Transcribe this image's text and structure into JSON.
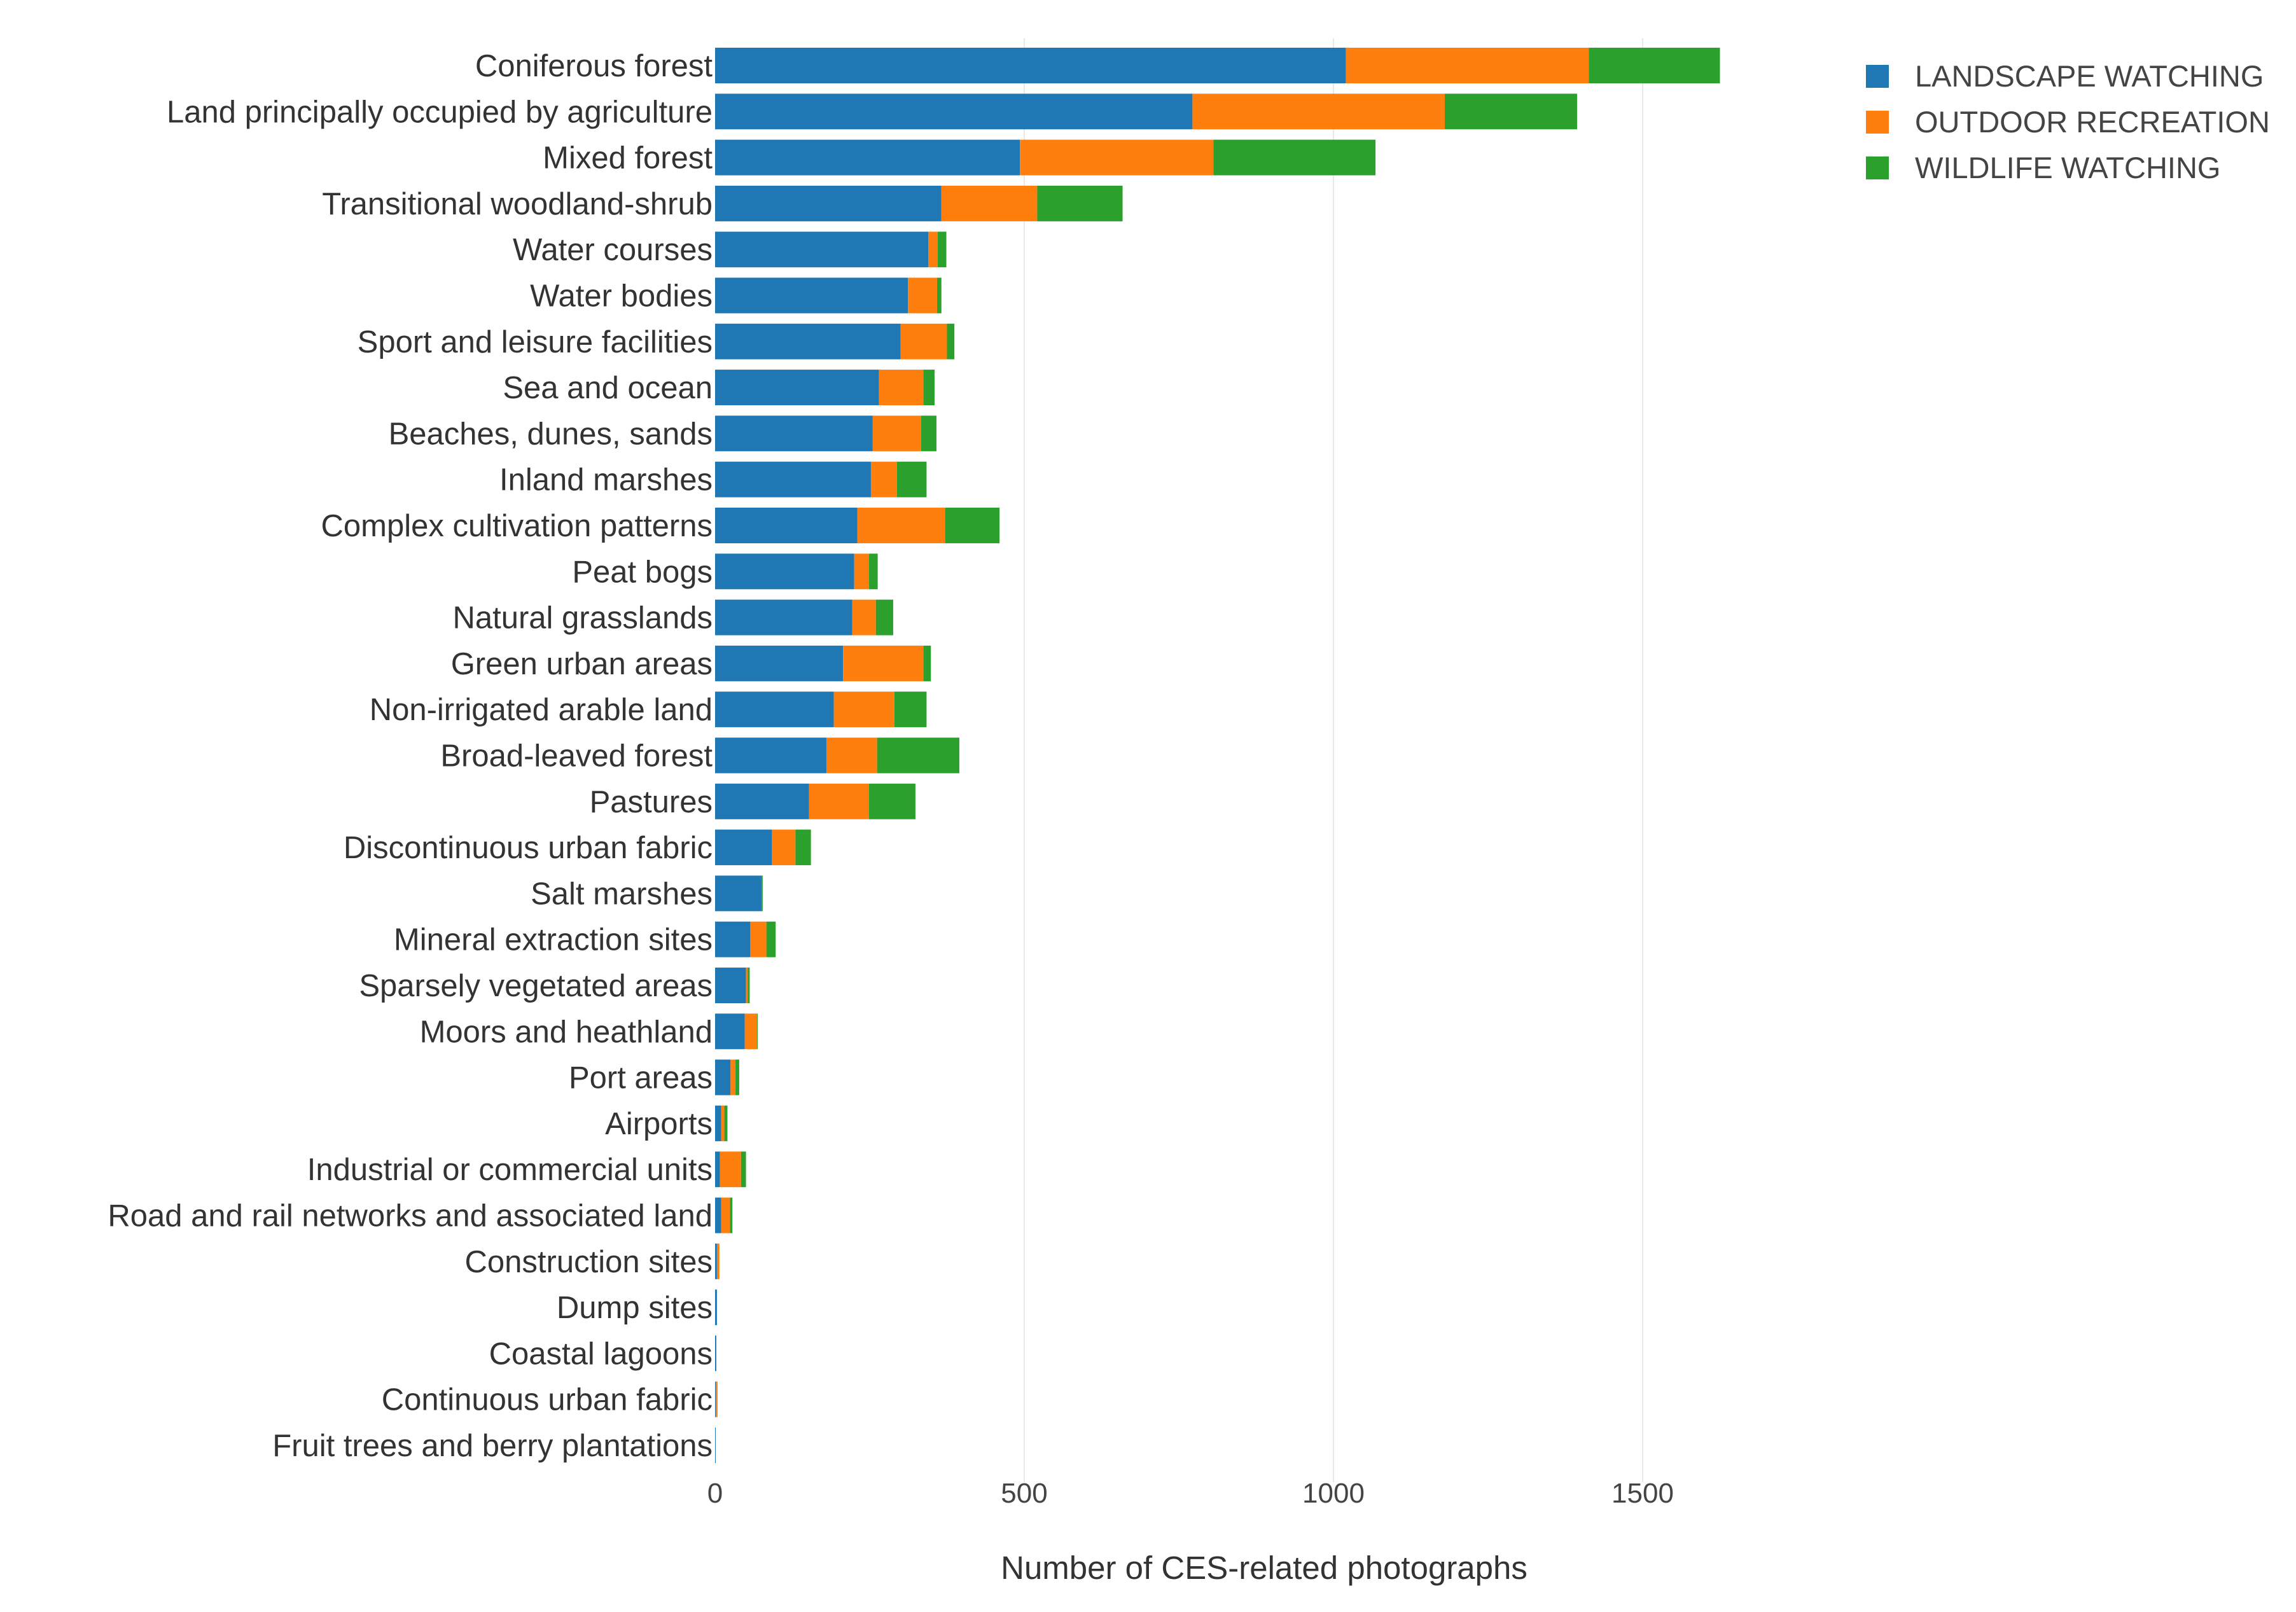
{
  "chart_data": {
    "type": "bar",
    "orientation": "horizontal",
    "stacked": true,
    "categories": [
      "Coniferous forest",
      "Land principally occupied by agriculture",
      "Mixed forest",
      "Transitional woodland-shrub",
      "Water courses",
      "Water bodies",
      "Sport and leisure facilities",
      "Sea and ocean",
      "Beaches, dunes, sands",
      "Inland marshes",
      "Complex cultivation patterns",
      "Peat bogs",
      "Natural grasslands",
      "Green urban areas",
      "Non-irrigated arable land",
      "Broad-leaved forest",
      "Pastures",
      "Discontinuous urban fabric",
      "Salt marshes",
      "Mineral extraction sites",
      "Sparsely vegetated areas",
      "Moors and heathland",
      "Port areas",
      "Airports",
      "Industrial or commercial units",
      "Road and rail networks and associated land",
      "Construction sites",
      "Dump sites",
      "Coastal lagoons",
      "Continuous urban fabric",
      "Fruit trees and berry plantations"
    ],
    "series": [
      {
        "name": "LANDSCAPE WATCHING",
        "color": "#1f77b4",
        "values": [
          1020,
          772,
          493,
          366,
          345,
          312,
          300,
          265,
          255,
          252,
          230,
          225,
          222,
          207,
          192,
          180,
          152,
          92,
          75,
          57,
          50,
          48,
          25,
          10,
          8,
          10,
          3,
          3,
          2,
          1,
          1
        ]
      },
      {
        "name": "OUTDOOR RECREATION",
        "color": "#ff7f0e",
        "values": [
          393,
          408,
          313,
          155,
          15,
          47,
          75,
          72,
          78,
          42,
          142,
          24,
          38,
          130,
          98,
          82,
          97,
          38,
          0,
          26,
          3,
          20,
          8,
          5,
          34,
          14,
          4,
          0,
          0,
          3,
          0
        ]
      },
      {
        "name": "WILDLIFE WATCHING",
        "color": "#2ca02c",
        "values": [
          212,
          214,
          262,
          138,
          14,
          7,
          12,
          18,
          25,
          48,
          88,
          14,
          28,
          12,
          52,
          133,
          75,
          25,
          2,
          15,
          3,
          1,
          6,
          5,
          8,
          4,
          0,
          0,
          0,
          0,
          0
        ]
      }
    ],
    "title": "",
    "xlabel": "Number of CES-related photographs",
    "ylabel": "",
    "xlim": [
      0,
      2600
    ],
    "xticks": [
      "0",
      "500",
      "1000",
      "1500"
    ],
    "xtick_values": [
      0,
      500,
      1000,
      1500
    ],
    "grid": "vertical",
    "legend_position": "top-right"
  }
}
